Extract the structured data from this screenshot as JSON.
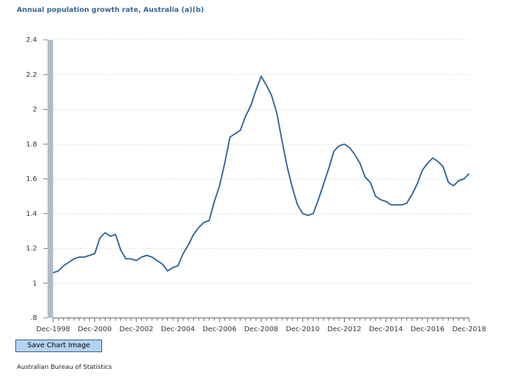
{
  "chart_data": {
    "type": "line",
    "title": "Annual population growth rate, Australia (a)(b)",
    "xlabel": "",
    "ylabel": "",
    "ylim": [
      0.8,
      2.4
    ],
    "y_ticks": [
      ".8",
      "1",
      "1.2",
      "1.4",
      "1.6",
      "1.8",
      "2",
      "2.2",
      "2.4"
    ],
    "y_tick_values": [
      0.8,
      1.0,
      1.2,
      1.4,
      1.6,
      1.8,
      2.0,
      2.2,
      2.4
    ],
    "x_tick_labels": [
      "Dec-1998",
      "Dec-2000",
      "Dec-2002",
      "Dec-2004",
      "Dec-2006",
      "Dec-2008",
      "Dec-2010",
      "Dec-2012",
      "Dec-2014",
      "Dec-2016",
      "Dec-2018"
    ],
    "grid": "horizontal, dotted",
    "legend": "none",
    "line_color": "#336699",
    "series": [
      {
        "x": [
          "Dec-1998",
          "Mar-1999",
          "Jun-1999",
          "Sep-1999",
          "Dec-1999",
          "Mar-2000",
          "Jun-2000",
          "Sep-2000",
          "Dec-2000",
          "Mar-2001",
          "Jun-2001",
          "Sep-2001",
          "Dec-2001",
          "Mar-2002",
          "Jun-2002",
          "Sep-2002",
          "Dec-2002",
          "Mar-2003",
          "Jun-2003",
          "Sep-2003",
          "Dec-2003",
          "Mar-2004",
          "Jun-2004",
          "Sep-2004",
          "Dec-2004",
          "Mar-2005",
          "Jun-2005",
          "Sep-2005",
          "Dec-2005",
          "Mar-2006",
          "Jun-2006",
          "Sep-2006",
          "Dec-2006",
          "Mar-2007",
          "Jun-2007",
          "Sep-2007",
          "Dec-2007",
          "Mar-2008",
          "Jun-2008",
          "Sep-2008",
          "Dec-2008",
          "Mar-2009",
          "Jun-2009",
          "Sep-2009",
          "Dec-2009",
          "Mar-2010",
          "Jun-2010",
          "Sep-2010",
          "Dec-2010",
          "Mar-2011",
          "Jun-2011",
          "Sep-2011",
          "Dec-2011",
          "Mar-2012",
          "Jun-2012",
          "Sep-2012",
          "Dec-2012",
          "Mar-2013",
          "Jun-2013",
          "Sep-2013",
          "Dec-2013",
          "Mar-2014",
          "Jun-2014",
          "Sep-2014",
          "Dec-2014",
          "Mar-2015",
          "Jun-2015",
          "Sep-2015",
          "Dec-2015",
          "Mar-2016",
          "Jun-2016",
          "Sep-2016",
          "Dec-2016",
          "Mar-2017",
          "Jun-2017",
          "Sep-2017",
          "Dec-2017",
          "Mar-2018",
          "Jun-2018",
          "Sep-2018",
          "Dec-2018"
        ],
        "values": [
          1.06,
          1.07,
          1.1,
          1.12,
          1.14,
          1.15,
          1.15,
          1.16,
          1.17,
          1.26,
          1.29,
          1.27,
          1.28,
          1.19,
          1.14,
          1.14,
          1.13,
          1.15,
          1.16,
          1.15,
          1.13,
          1.11,
          1.07,
          1.09,
          1.1,
          1.17,
          1.22,
          1.28,
          1.32,
          1.35,
          1.36,
          1.47,
          1.56,
          1.69,
          1.84,
          1.86,
          1.88,
          1.96,
          2.02,
          2.11,
          2.19,
          2.14,
          2.08,
          1.98,
          1.82,
          1.67,
          1.55,
          1.45,
          1.4,
          1.39,
          1.4,
          1.48,
          1.57,
          1.66,
          1.76,
          1.79,
          1.8,
          1.78,
          1.74,
          1.69,
          1.61,
          1.58,
          1.5,
          1.48,
          1.47,
          1.45,
          1.45,
          1.45,
          1.46,
          1.51,
          1.57,
          1.65,
          1.69,
          1.72,
          1.7,
          1.67,
          1.58,
          1.56,
          1.59,
          1.6,
          1.63
        ]
      }
    ]
  },
  "buttons": {
    "save_chart_image": "Save Chart Image"
  },
  "footer": {
    "source": "Australian Bureau of Statistics"
  }
}
